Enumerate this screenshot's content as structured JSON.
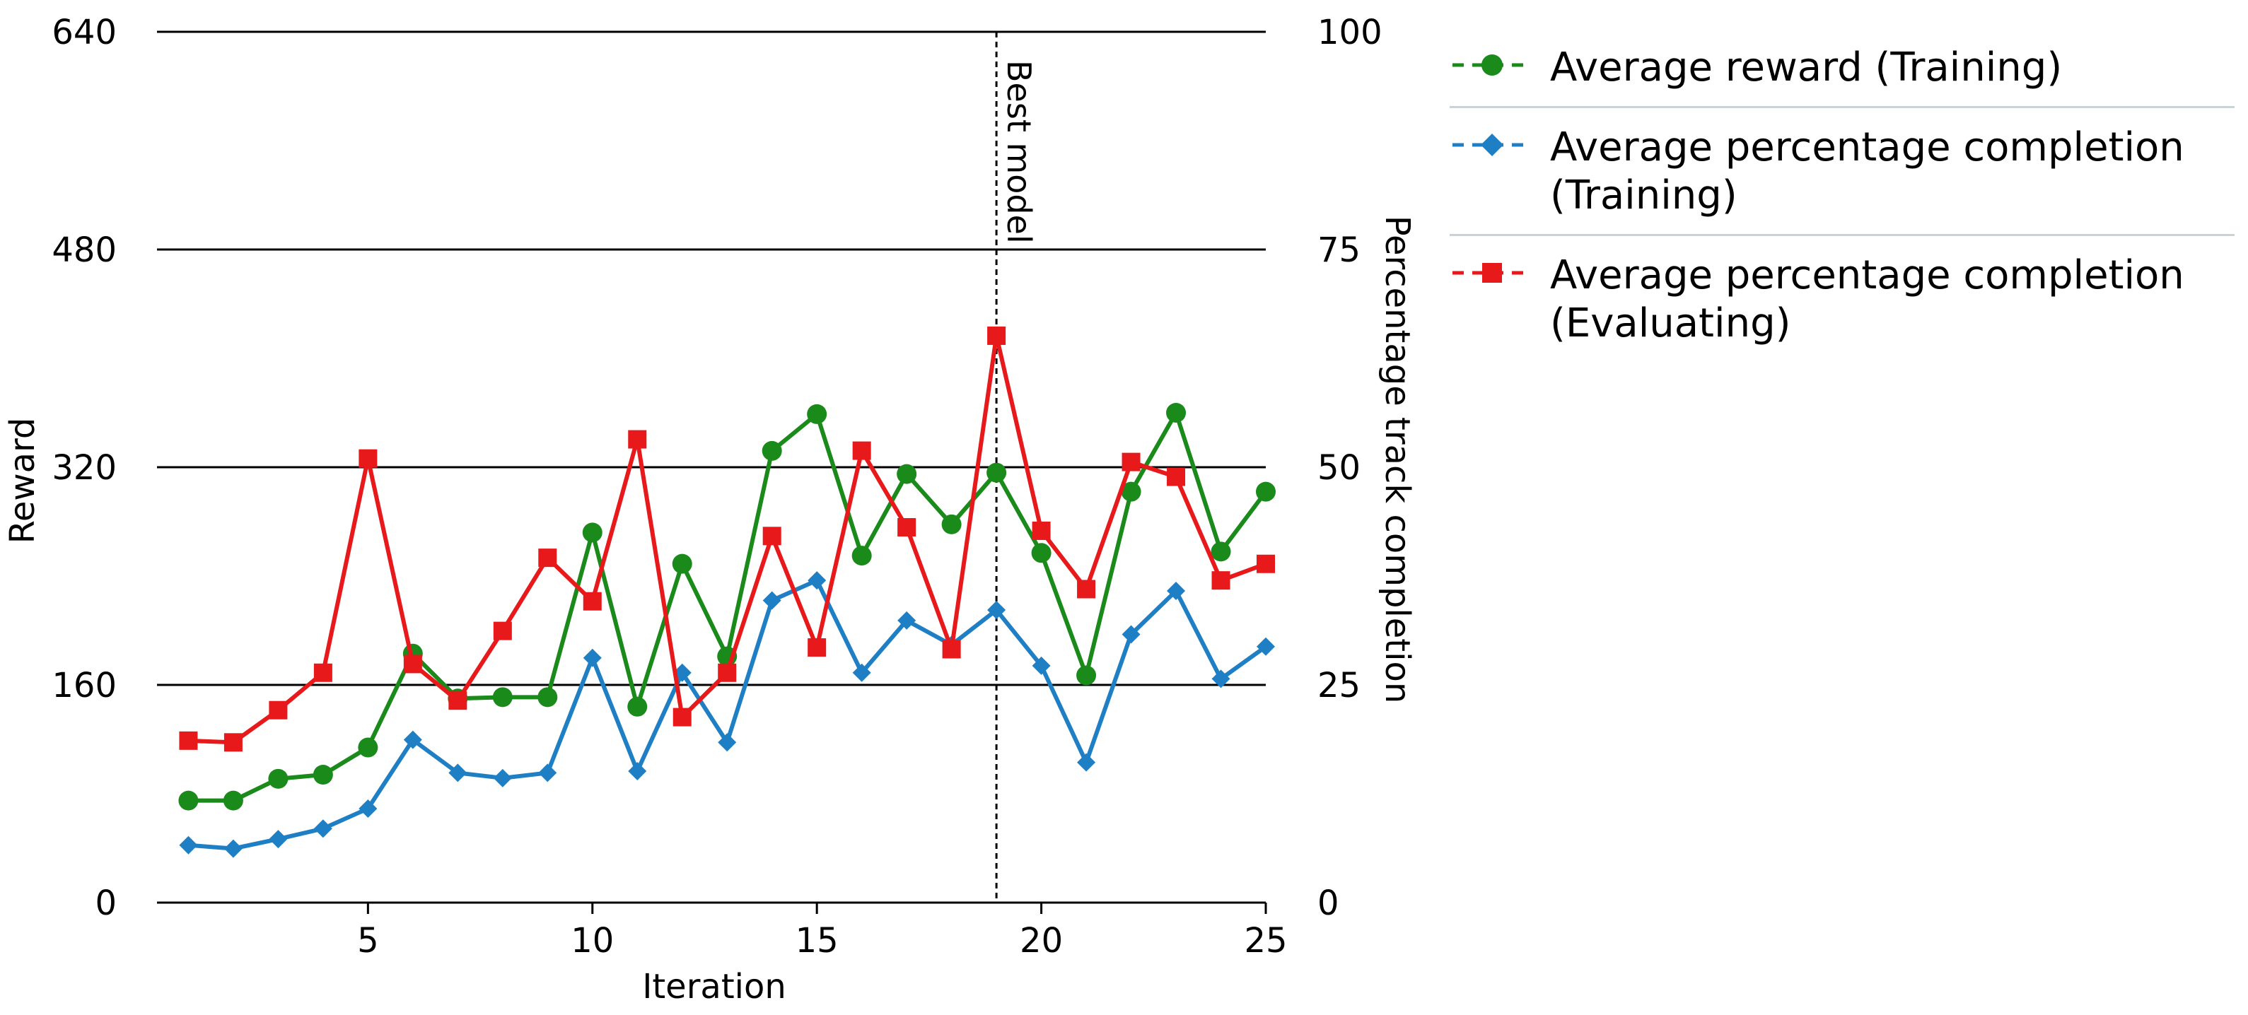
{
  "chart_data": {
    "type": "line",
    "title": "",
    "xlabel": "Iteration",
    "ylabel_left": "Reward",
    "ylabel_right": "Percentage track completion",
    "x": [
      1,
      2,
      3,
      4,
      5,
      6,
      7,
      8,
      9,
      10,
      11,
      12,
      13,
      14,
      15,
      16,
      17,
      18,
      19,
      20,
      21,
      22,
      23,
      24,
      25
    ],
    "xticks": [
      "5",
      "10",
      "15",
      "20",
      "25"
    ],
    "xlim": [
      0.3,
      25
    ],
    "ylim_left": [
      0,
      640
    ],
    "yticks_left": [
      "0",
      "160",
      "320",
      "480",
      "640"
    ],
    "ylim_right": [
      0,
      100
    ],
    "yticks_right": [
      "0",
      "25",
      "50",
      "75",
      "100"
    ],
    "grid": "horizontal",
    "annotation": {
      "text": "Best model",
      "x": 19
    },
    "series": [
      {
        "name": "Average reward (Training)",
        "axis": "left",
        "color": "#1a8a1a",
        "marker": "circle",
        "values": [
          75,
          75,
          91,
          94,
          114,
          183,
          150,
          151,
          151,
          272,
          144,
          249,
          181,
          332,
          359,
          255,
          315,
          278,
          316,
          257,
          167,
          302,
          360,
          258,
          302
        ]
      },
      {
        "name": "Average percentage completion (Training)",
        "axis": "right",
        "color": "#1f7fc4",
        "marker": "diamond",
        "values": [
          6.6,
          6.2,
          7.3,
          8.5,
          10.8,
          18.7,
          14.9,
          14.3,
          14.9,
          28.1,
          15.1,
          26.4,
          18.4,
          34.7,
          37.0,
          26.4,
          32.4,
          29.6,
          33.6,
          27.2,
          16.1,
          30.8,
          35.8,
          25.7,
          29.4
        ]
      },
      {
        "name": "Average percentage completion (Evaluating)",
        "axis": "right",
        "color": "#e8191b",
        "marker": "square",
        "values": [
          18.6,
          18.4,
          22.1,
          26.4,
          51.0,
          27.4,
          23.2,
          31.2,
          39.6,
          34.6,
          53.2,
          21.3,
          26.4,
          42.1,
          29.3,
          51.9,
          43.1,
          29.1,
          65.1,
          42.7,
          36.0,
          50.6,
          48.9,
          37.0,
          38.9
        ]
      }
    ],
    "legend": [
      {
        "lines": [
          "Average reward (Training)"
        ]
      },
      {
        "lines": [
          "Average percentage completion",
          "(Training)"
        ]
      },
      {
        "lines": [
          "Average percentage completion",
          "(Evaluating)"
        ]
      }
    ]
  }
}
